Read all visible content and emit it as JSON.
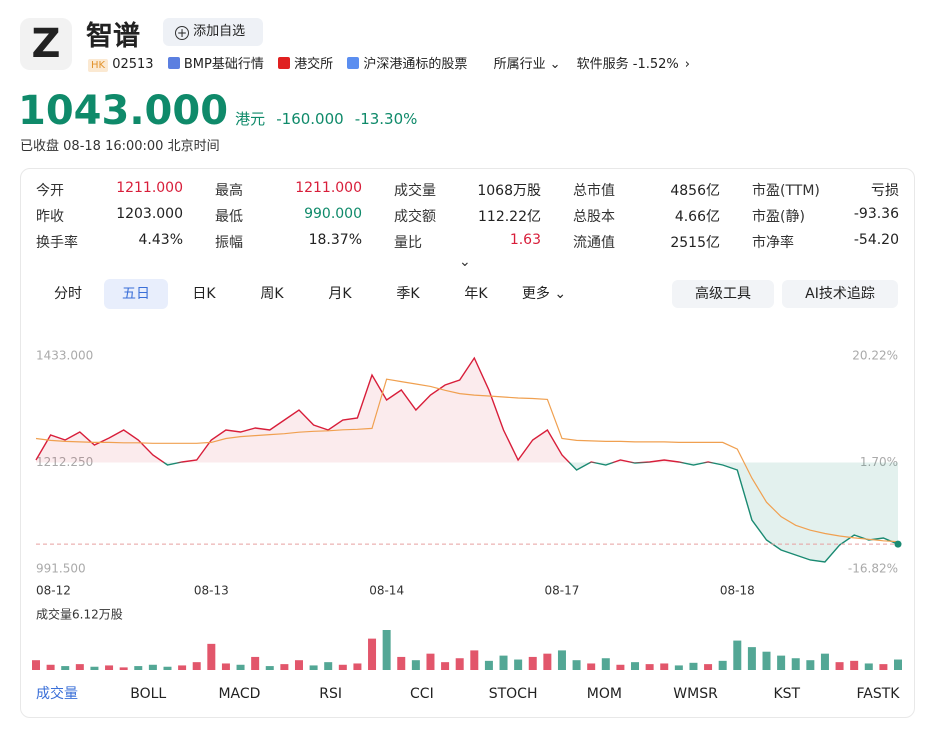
{
  "header": {
    "logo": "Z",
    "name": "智谱",
    "add_button": "添加自选",
    "market": "HK",
    "code": "02513",
    "tags": [
      "BMP基础行情",
      "港交所",
      "沪深港通标的股票"
    ],
    "industry": "所属行业",
    "sector": "软件服务",
    "sector_change": "-1.52%"
  },
  "quote": {
    "price": "1043.000",
    "currency": "港元",
    "change": "-160.000",
    "change_pct": "-13.30%",
    "status": "已收盘",
    "time": "08-18 16:00:00 北京时间",
    "color": "#0f8a6a"
  },
  "stats": [
    {
      "label": "今开",
      "value": "1211.000",
      "color": "#d81e3a"
    },
    {
      "label": "最高",
      "value": "1211.000",
      "color": "#d81e3a"
    },
    {
      "label": "成交量",
      "value": "1068万股",
      "color": "#222"
    },
    {
      "label": "总市值",
      "value": "4856亿",
      "color": "#222"
    },
    {
      "label": "市盈(TTM)",
      "value": "亏损",
      "color": "#222"
    },
    {
      "label": "昨收",
      "value": "1203.000",
      "color": "#222"
    },
    {
      "label": "最低",
      "value": "990.000",
      "color": "#0f8a6a"
    },
    {
      "label": "成交额",
      "value": "112.22亿",
      "color": "#222"
    },
    {
      "label": "总股本",
      "value": "4.66亿",
      "color": "#222"
    },
    {
      "label": "市盈(静)",
      "value": "-93.36",
      "color": "#222"
    },
    {
      "label": "换手率",
      "value": "4.43%",
      "color": "#222"
    },
    {
      "label": "振幅",
      "value": "18.37%",
      "color": "#222"
    },
    {
      "label": "量比",
      "value": "1.63",
      "color": "#d81e3a"
    },
    {
      "label": "流通值",
      "value": "2515亿",
      "color": "#222"
    },
    {
      "label": "市净率",
      "value": "-54.20",
      "color": "#222"
    }
  ],
  "tabs": [
    "分时",
    "五日",
    "日K",
    "周K",
    "月K",
    "季K",
    "年K",
    "更多"
  ],
  "active_tab": 1,
  "tools": [
    "高级工具",
    "AI技术追踪"
  ],
  "chart_data": {
    "type": "line",
    "x_labels": [
      "08-12",
      "08-13",
      "08-14",
      "08-17",
      "08-18"
    ],
    "ylim": [
      991.5,
      1433
    ],
    "yticks": [
      {
        "value": 1433,
        "label": "1433.000"
      },
      {
        "value": 1212.25,
        "label": "1212.250"
      },
      {
        "value": 991.5,
        "label": "991.500"
      }
    ],
    "y2lim": [
      -16.82,
      20.22
    ],
    "y2ticks": [
      {
        "value": 20.22,
        "label": "20.22%"
      },
      {
        "value": 1.7,
        "label": "1.70%"
      },
      {
        "value": -16.82,
        "label": "-16.82%"
      }
    ],
    "up_color": "#d81e3a",
    "down_color": "#1a8a72",
    "series": [
      {
        "name": "价格",
        "color": "#d81e3a",
        "values": [
          1217.4,
          1269.2,
          1258.9,
          1275.5,
          1248.5,
          1263.0,
          1279.6,
          1258.9,
          1227.8,
          1207.1,
          1213.3,
          1217.4,
          1258.9,
          1279.6,
          1275.5,
          1283.8,
          1279.6,
          1300.3,
          1321.1,
          1290.0,
          1279.6,
          1300.3,
          1304.5,
          1393.6,
          1341.8,
          1362.5,
          1321.1,
          1352.2,
          1372.9,
          1383.3,
          1428.9,
          1362.5,
          1279.6,
          1217.4,
          1258.9,
          1279.6,
          1227.8,
          1196.7,
          1213.3,
          1207.1,
          1217.4,
          1211.2,
          1213.3,
          1217.4,
          1213.3,
          1207.1,
          1213.3,
          1207.1,
          1196.7,
          1093.1,
          1051.6,
          1030.9,
          1020.5,
          1010.1,
          1006.0,
          1041.2,
          1062.0,
          1051.6,
          1055.8,
          1043.0
        ]
      },
      {
        "name": "均价",
        "color": "#f0a050",
        "values": [
          1262,
          1258,
          1256,
          1255,
          1254,
          1254,
          1253,
          1253,
          1252,
          1252,
          1252,
          1252,
          1254,
          1262,
          1266,
          1268,
          1270,
          1272,
          1275,
          1277,
          1278,
          1280,
          1281,
          1283,
          1385,
          1380,
          1375,
          1370,
          1362,
          1355,
          1352,
          1350,
          1348,
          1346,
          1345,
          1343,
          1262,
          1258,
          1257,
          1256,
          1256,
          1255,
          1255,
          1255,
          1254,
          1254,
          1254,
          1254,
          1240,
          1180,
          1130,
          1100,
          1082,
          1072,
          1065,
          1060,
          1056,
          1053,
          1050,
          1048
        ]
      }
    ],
    "volume_label": "成交量6.12万股",
    "volume_ylim": [
      0,
      61200
    ],
    "volume": [
      15000,
      8000,
      6000,
      9000,
      5000,
      7000,
      4000,
      6000,
      8000,
      5000,
      7000,
      12000,
      40000,
      10000,
      8000,
      20000,
      6000,
      9000,
      15000,
      7000,
      12000,
      8000,
      10000,
      48000,
      61200,
      20000,
      15000,
      25000,
      12000,
      18000,
      30000,
      14000,
      22000,
      16000,
      20000,
      25000,
      30000,
      15000,
      10000,
      18000,
      8000,
      12000,
      9000,
      10000,
      7000,
      11000,
      9000,
      14000,
      45000,
      35000,
      28000,
      22000,
      18000,
      15000,
      25000,
      12000,
      14000,
      10000,
      9000,
      16000
    ]
  },
  "indicators": [
    "成交量",
    "BOLL",
    "MACD",
    "RSI",
    "CCI",
    "STOCH",
    "MOM",
    "WMSR",
    "KST",
    "FASTK"
  ],
  "active_indicator": 0
}
